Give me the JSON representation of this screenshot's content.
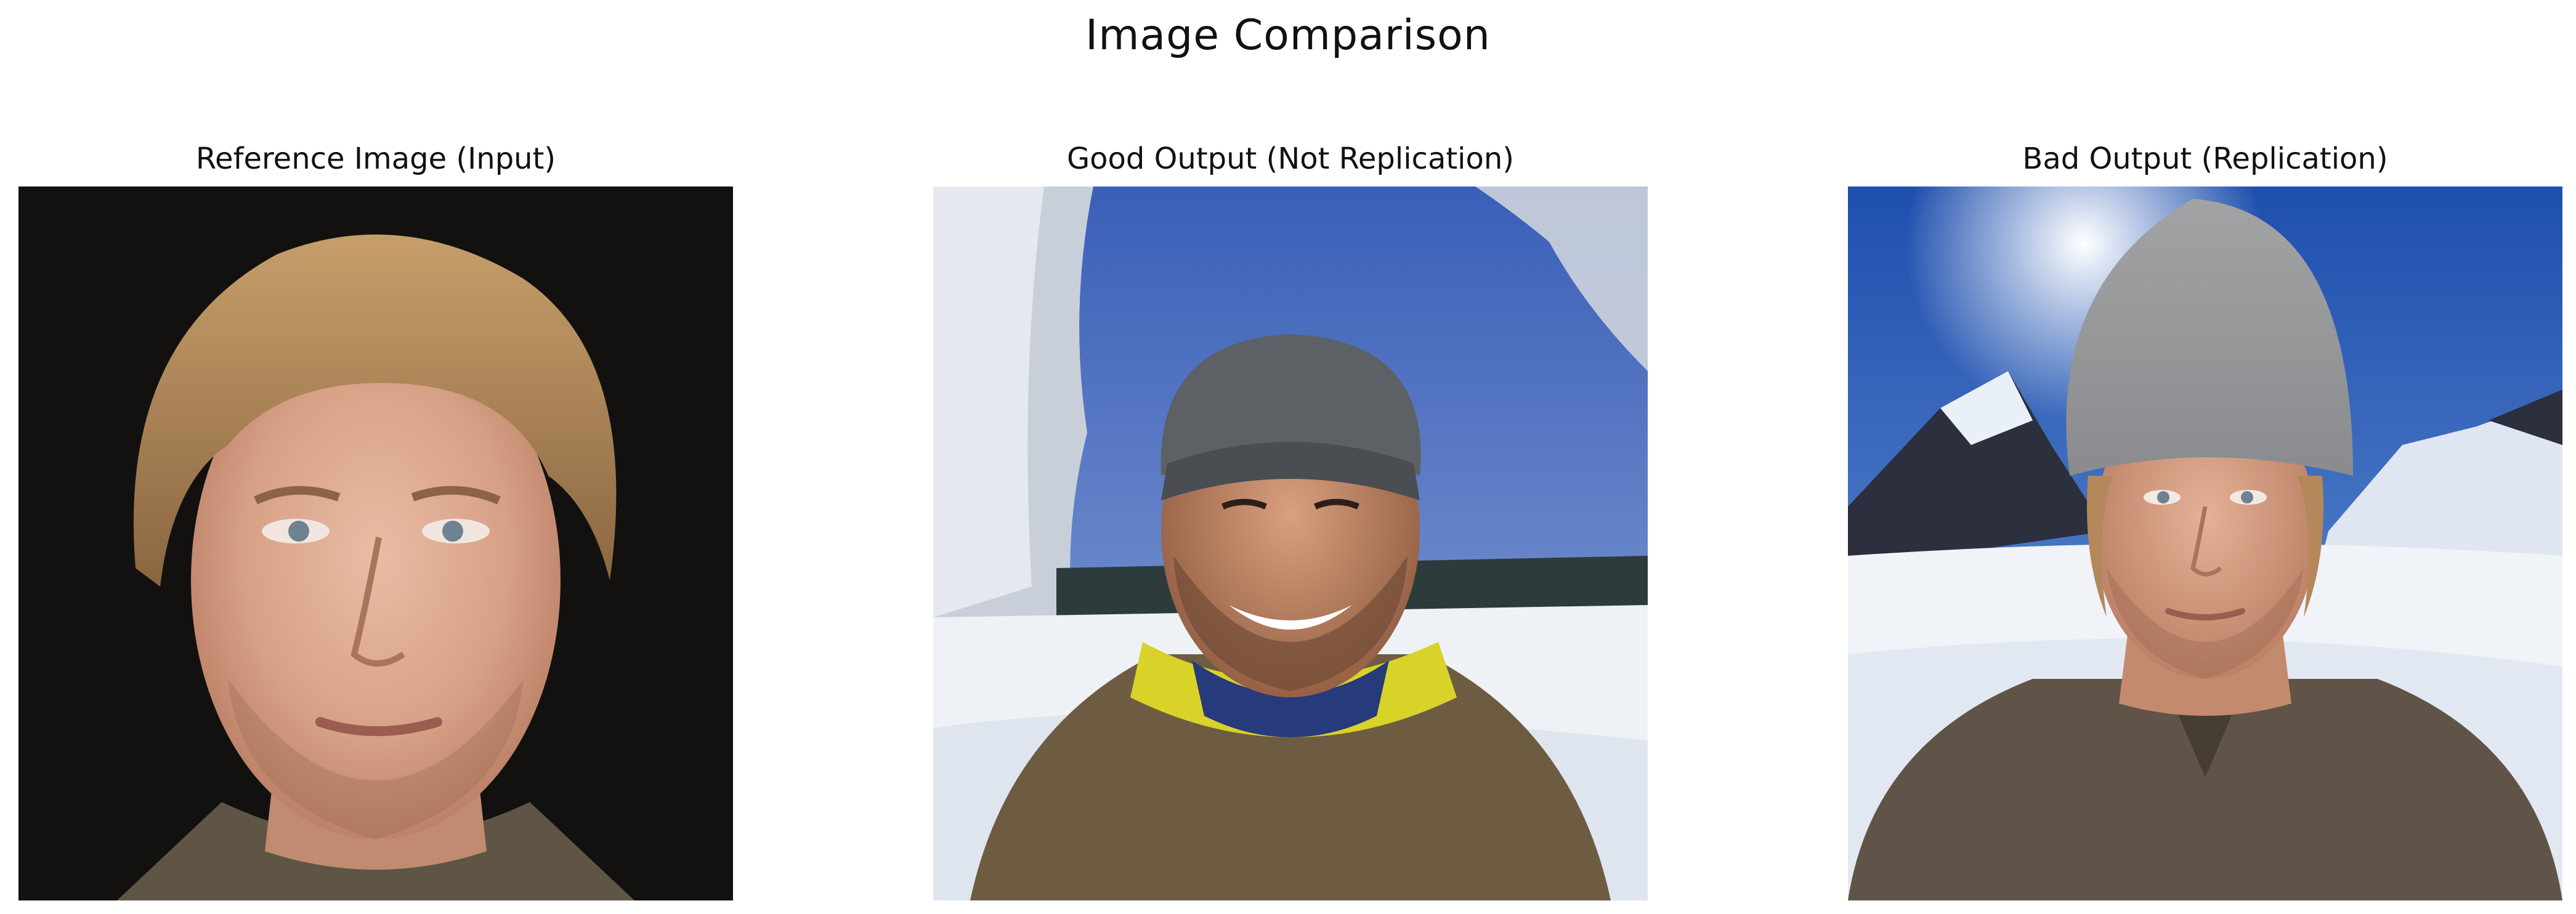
{
  "figure": {
    "title": "Image Comparison"
  },
  "panels": [
    {
      "title": "Reference Image (Input)",
      "image": "portrait-icon"
    },
    {
      "title": "Good Output (Not Replication)",
      "image": "winter-selfie-icon"
    },
    {
      "title": "Bad Output (Replication)",
      "image": "winter-portrait-replication-icon"
    }
  ],
  "colors": {
    "background": "#ffffff",
    "text": "#111111",
    "dark_backdrop": "#121110",
    "sky_blue": "#3f66b8",
    "snow": "#eef2f7",
    "skin": "#d9a68c",
    "hair": "#b4885a",
    "beanie_dark": "#5d6064",
    "beanie_light": "#9c9d9f",
    "jacket": "#6e5c42"
  }
}
